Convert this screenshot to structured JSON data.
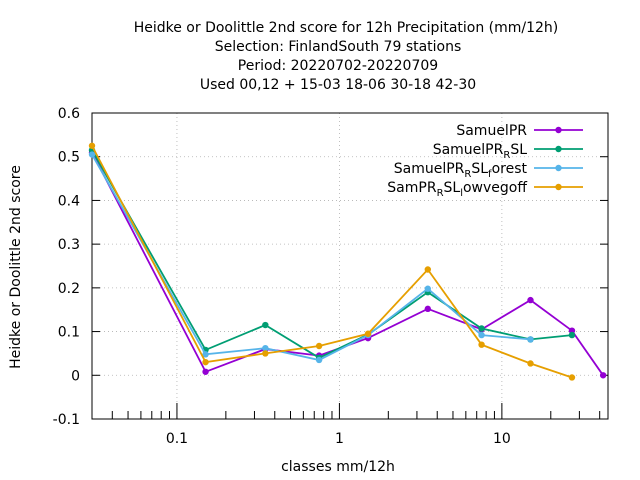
{
  "chart_data": {
    "type": "line",
    "title_lines": [
      "Heidke or Doolittle 2nd score  for 12h Precipitation (mm/12h)",
      "Selection: FinlandSouth     79 stations",
      "Period: 20220702-20220709",
      "Used  00,12  + 15-03 18-06 30-18 42-30"
    ],
    "xlabel": "classes mm/12h",
    "ylabel": "Heidke or Doolittle 2nd score",
    "x_scale": "log",
    "xlim": [
      0.03,
      45
    ],
    "ylim": [
      -0.1,
      0.6
    ],
    "yticks": [
      "-0.1",
      "0",
      "0.1",
      "0.2",
      "0.3",
      "0.4",
      "0.5",
      "0.6"
    ],
    "xticks": [
      "0.1",
      "1",
      "10"
    ],
    "grid": true,
    "legend_position": "top-right",
    "series": [
      {
        "name": "SamuelPR",
        "color": "#9400d3",
        "x": [
          0.03,
          0.15,
          0.35,
          0.75,
          1.5,
          3.5,
          7.5,
          15,
          27,
          42
        ],
        "y": [
          0.51,
          0.008,
          0.06,
          0.045,
          0.085,
          0.152,
          0.105,
          0.172,
          0.102,
          0.0
        ]
      },
      {
        "name": "SamuelPR_R SL",
        "legend_main": "SamuelPR",
        "legend_sub": "R",
        "legend_rest": "SL",
        "legend_sub2": "",
        "legend_rest2": "",
        "color": "#009e73",
        "x": [
          0.03,
          0.15,
          0.35,
          0.75,
          1.5,
          3.5,
          7.5,
          15,
          27
        ],
        "y": [
          0.515,
          0.058,
          0.115,
          0.04,
          0.093,
          0.19,
          0.107,
          0.082,
          0.092
        ]
      },
      {
        "name": "SamuelPR_R SL_forest",
        "legend_main": "SamuelPR",
        "legend_sub": "R",
        "legend_rest": "SL",
        "legend_sub2": "f",
        "legend_rest2": "orest",
        "color": "#56b4e9",
        "x": [
          0.03,
          0.15,
          0.35,
          0.75,
          1.5,
          3.5,
          7.5,
          15
        ],
        "y": [
          0.505,
          0.048,
          0.062,
          0.035,
          0.092,
          0.198,
          0.092,
          0.082
        ]
      },
      {
        "name": "SamPR_R SL_lowvegoff",
        "legend_main": "SamPR",
        "legend_sub": "R",
        "legend_rest": "SL",
        "legend_sub2": "l",
        "legend_rest2": "owvegoff",
        "color": "#e69f00",
        "x": [
          0.03,
          0.15,
          0.35,
          0.75,
          1.5,
          3.5,
          7.5,
          15,
          27
        ],
        "y": [
          0.525,
          0.03,
          0.05,
          0.067,
          0.095,
          0.242,
          0.07,
          0.027,
          -0.005
        ]
      }
    ]
  }
}
